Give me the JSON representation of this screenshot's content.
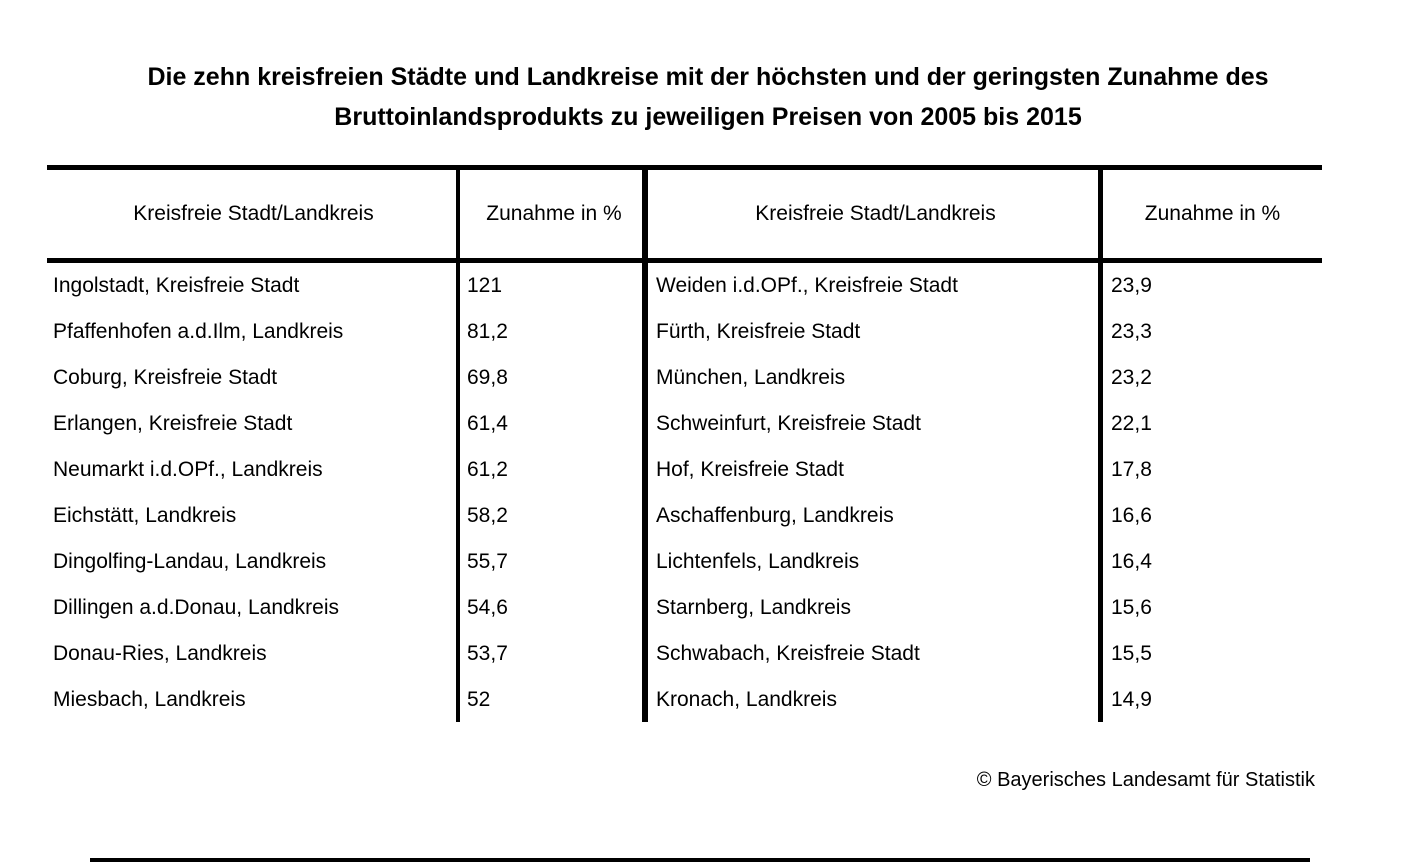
{
  "title": {
    "line1": "Die zehn kreisfreien Städte und Landkreise mit der höchsten und der geringsten Zunahme des",
    "line2": "Bruttoinlandsprodukts zu jeweiligen Preisen von 2005 bis 2015"
  },
  "footer": {
    "copyright": "© Bayerisches Landesamt für Statistik"
  },
  "colors": {
    "text": "#000000",
    "background": "#ffffff",
    "rule": "#000000"
  },
  "chart_data": {
    "type": "table",
    "title": "Die zehn kreisfreien Städte und Landkreise mit der höchsten und der geringsten Zunahme des Bruttoinlandsprodukts zu jeweiligen Preisen von 2005 bis 2015",
    "unit": "%",
    "decimal_separator": ",",
    "columns": [
      "Kreisfreie Stadt/Landkreis",
      "Zunahme in %",
      "Kreisfreie Stadt/Landkreis",
      "Zunahme in %"
    ],
    "rows": [
      [
        "Ingolstadt, Kreisfreie Stadt",
        "121",
        "Weiden i.d.OPf., Kreisfreie Stadt",
        "23,9"
      ],
      [
        "Pfaffenhofen a.d.Ilm, Landkreis",
        "81,2",
        "Fürth, Kreisfreie Stadt",
        "23,3"
      ],
      [
        "Coburg, Kreisfreie Stadt",
        "69,8",
        "München, Landkreis",
        "23,2"
      ],
      [
        "Erlangen, Kreisfreie Stadt",
        "61,4",
        "Schweinfurt, Kreisfreie Stadt",
        "22,1"
      ],
      [
        "Neumarkt i.d.OPf., Landkreis",
        "61,2",
        "Hof, Kreisfreie Stadt",
        "17,8"
      ],
      [
        "Eichstätt, Landkreis",
        "58,2",
        "Aschaffenburg, Landkreis",
        "16,6"
      ],
      [
        "Dingolfing-Landau, Landkreis",
        "55,7",
        "Lichtenfels, Landkreis",
        "16,4"
      ],
      [
        "Dillingen a.d.Donau, Landkreis",
        "54,6",
        "Starnberg, Landkreis",
        "15,6"
      ],
      [
        "Donau-Ries, Landkreis",
        "53,7",
        "Schwabach, Kreisfreie Stadt",
        "15,5"
      ],
      [
        "Miesbach, Landkreis",
        "52",
        "Kronach, Landkreis",
        "14,9"
      ]
    ]
  }
}
